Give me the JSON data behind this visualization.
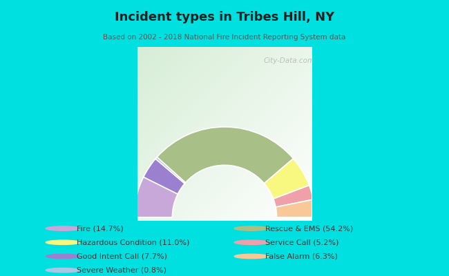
{
  "title": "Incident types in Tribes Hill, NY",
  "subtitle": "Based on 2002 - 2018 National Fire Incident Reporting System data",
  "bg_outer": "#00e0e0",
  "bg_chart_color1": "#d8edd8",
  "bg_chart_color2": "#f0f8f0",
  "watermark": "City-Data.com",
  "segments": [
    {
      "name": "Fire",
      "value": 14.7,
      "color": "#c8a8d8"
    },
    {
      "name": "Good Intent Call",
      "value": 7.7,
      "color": "#9b80d0"
    },
    {
      "name": "Severe Weather",
      "value": 0.8,
      "color": "#a8c8e8"
    },
    {
      "name": "Rescue & EMS",
      "value": 54.2,
      "color": "#a8c088"
    },
    {
      "name": "Hazardous Condition",
      "value": 11.0,
      "color": "#f8f880"
    },
    {
      "name": "Service Call",
      "value": 5.2,
      "color": "#f0a0a8"
    },
    {
      "name": "False Alarm",
      "value": 6.3,
      "color": "#f8c898"
    }
  ],
  "legend_left": [
    {
      "label": "Fire (14.7%)",
      "color": "#c8a8d8"
    },
    {
      "label": "Hazardous Condition (11.0%)",
      "color": "#f8f880"
    },
    {
      "label": "Good Intent Call (7.7%)",
      "color": "#9b80d0"
    },
    {
      "label": "Severe Weather (0.8%)",
      "color": "#a8c8e8"
    }
  ],
  "legend_right": [
    {
      "label": "Rescue & EMS (54.2%)",
      "color": "#a8c088"
    },
    {
      "label": "Service Call (5.2%)",
      "color": "#f0a0a8"
    },
    {
      "label": "False Alarm (6.3%)",
      "color": "#f8c898"
    }
  ]
}
